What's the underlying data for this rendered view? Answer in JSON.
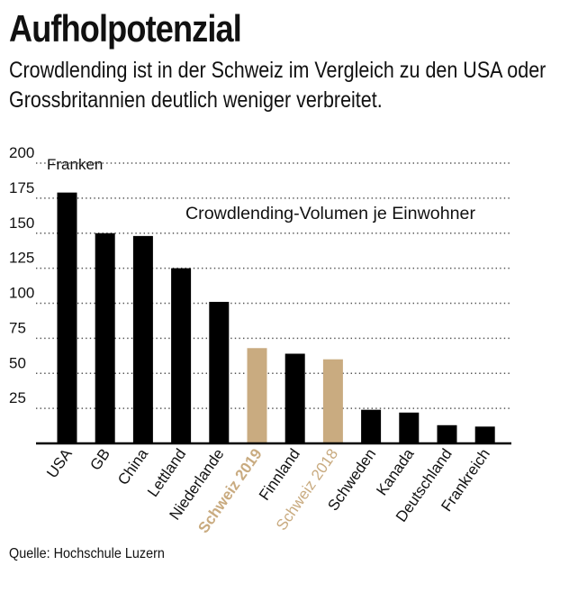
{
  "header": {
    "title": "Aufholpotenzial",
    "subtitle": "Crowdlending ist in der Schweiz im Vergleich zu den USA oder Grossbritannien deutlich weniger verbreitet."
  },
  "source": "Quelle: Hochschule Luzern",
  "colors": {
    "default_bar": "#000000",
    "highlight_bar": "#c9ab80",
    "grid": "#555555"
  },
  "chart_data": {
    "type": "bar",
    "title": "Crowdlending-Volumen je Einwohner",
    "ylabel": "Franken",
    "ylim": [
      0,
      200
    ],
    "yticks": [
      25,
      50,
      75,
      100,
      125,
      150,
      175,
      200
    ],
    "grid": true,
    "categories": [
      "USA",
      "GB",
      "China",
      "Lettland",
      "Niederlande",
      "Schweiz 2019",
      "Finnland",
      "Schweiz 2018",
      "Schweden",
      "Kanada",
      "Deutschland",
      "Frankreich"
    ],
    "values": [
      179,
      150,
      148,
      125,
      101,
      68,
      64,
      60,
      24,
      22,
      13,
      12
    ],
    "highlighted": [
      "Schweiz 2019",
      "Schweiz 2018"
    ],
    "label_styles": [
      "normal",
      "normal",
      "normal",
      "normal",
      "normal",
      "bold",
      "normal",
      "normal",
      "normal",
      "normal",
      "normal",
      "normal"
    ]
  }
}
